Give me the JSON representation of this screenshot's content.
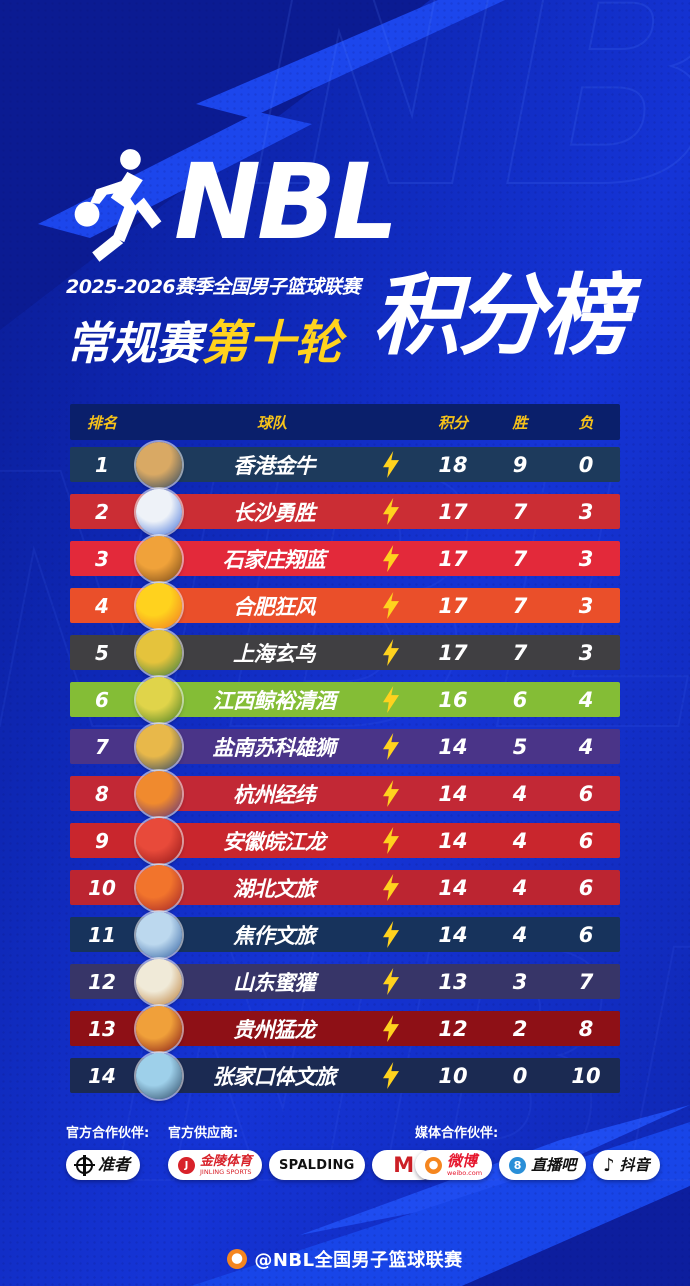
{
  "header": {
    "league": "NBL",
    "season_line": "2025-2026赛季全国男子篮球联赛",
    "stage": "常规赛",
    "round": "第十轮",
    "title": "积分榜"
  },
  "table": {
    "columns": [
      "排名",
      "球队",
      "积分",
      "胜",
      "负"
    ],
    "rows": [
      {
        "rank": "1",
        "team": "香港金牛",
        "points": "18",
        "wins": "9",
        "losses": "0",
        "row_color": "#1d3a5c",
        "logo_colors": [
          "#d9a964",
          "#26425f"
        ]
      },
      {
        "rank": "2",
        "team": "长沙勇胜",
        "points": "17",
        "wins": "7",
        "losses": "3",
        "row_color": "#cb2d34",
        "logo_colors": [
          "#eef2f8",
          "#3a6cd8"
        ]
      },
      {
        "rank": "3",
        "team": "石家庄翔蓝",
        "points": "17",
        "wins": "7",
        "losses": "3",
        "row_color": "#e3293a",
        "logo_colors": [
          "#f0a23a",
          "#6e4216"
        ]
      },
      {
        "rank": "4",
        "team": "合肥狂风",
        "points": "17",
        "wins": "7",
        "losses": "3",
        "row_color": "#ea4f2a",
        "logo_colors": [
          "#ffd21e",
          "#f07422"
        ]
      },
      {
        "rank": "5",
        "team": "上海玄鸟",
        "points": "17",
        "wins": "7",
        "losses": "3",
        "row_color": "#403f42",
        "logo_colors": [
          "#e5c33c",
          "#2f7a3f"
        ]
      },
      {
        "rank": "6",
        "team": "江西鲸裕清酒",
        "points": "16",
        "wins": "6",
        "losses": "4",
        "row_color": "#84bd36",
        "logo_colors": [
          "#e0d44a",
          "#3f7a22"
        ]
      },
      {
        "rank": "7",
        "team": "盐南苏科雄狮",
        "points": "14",
        "wins": "5",
        "losses": "4",
        "row_color": "#4a3488",
        "logo_colors": [
          "#e8b84a",
          "#223e66"
        ]
      },
      {
        "rank": "8",
        "team": "杭州经纬",
        "points": "14",
        "wins": "4",
        "losses": "6",
        "row_color": "#c22835",
        "logo_colors": [
          "#f08a2e",
          "#5a2d7e"
        ]
      },
      {
        "rank": "9",
        "team": "安徽皖江龙",
        "points": "14",
        "wins": "4",
        "losses": "6",
        "row_color": "#c9262d",
        "logo_colors": [
          "#e84a3a",
          "#8e1418"
        ]
      },
      {
        "rank": "10",
        "team": "湖北文旅",
        "points": "14",
        "wins": "4",
        "losses": "6",
        "row_color": "#bc2531",
        "logo_colors": [
          "#f2742c",
          "#9e1e28"
        ]
      },
      {
        "rank": "11",
        "team": "焦作文旅",
        "points": "14",
        "wins": "4",
        "losses": "6",
        "row_color": "#17335c",
        "logo_colors": [
          "#bcd8ee",
          "#2a5b9e"
        ]
      },
      {
        "rank": "12",
        "team": "山东蜜獾",
        "points": "13",
        "wins": "3",
        "losses": "7",
        "row_color": "#373568",
        "logo_colors": [
          "#f0ead8",
          "#b87830"
        ]
      },
      {
        "rank": "13",
        "team": "贵州猛龙",
        "points": "12",
        "wins": "2",
        "losses": "8",
        "row_color": "#8e1016",
        "logo_colors": [
          "#f0a03a",
          "#7e1014"
        ]
      },
      {
        "rank": "14",
        "team": "张家口体文旅",
        "points": "10",
        "wins": "0",
        "losses": "10",
        "row_color": "#1b2a52",
        "logo_colors": [
          "#9ed0ea",
          "#27425e"
        ]
      }
    ]
  },
  "sponsors": {
    "groups": [
      {
        "label": "官方合作伙伴:",
        "logos": [
          {
            "id": "rigorer",
            "name": "准者",
            "icon": "target"
          }
        ]
      },
      {
        "label": "官方供应商:",
        "logos": [
          {
            "id": "jinling-sports",
            "name": "金陵体育",
            "sub": "JINLING SPORTS",
            "icon": "jl-disc"
          },
          {
            "id": "spalding",
            "name": "SPALDING",
            "icon": "none"
          },
          {
            "id": "m-brand",
            "name": "M",
            "icon": "none"
          }
        ]
      },
      {
        "label": "媒体合作伙伴:",
        "logos": [
          {
            "id": "weibo",
            "name": "微博",
            "sub": "weibo.com",
            "icon": "weibo-eye"
          },
          {
            "id": "zhibo8",
            "name": "直播吧",
            "icon": "disc-8"
          },
          {
            "id": "douyin",
            "name": "抖音",
            "icon": "note"
          }
        ]
      }
    ]
  },
  "footer": {
    "handle": "@NBL全国男子篮球联赛"
  },
  "colors": {
    "background": "#1130c8",
    "bolt_overlay": "#1c46ec",
    "table_header_bg": "#0a1f6b",
    "accent_yellow": "#f6c21a",
    "lightning_yellow": "#ffd21e",
    "text_white": "#ffffff"
  },
  "chart_data": {
    "type": "table",
    "title": "2025-2026赛季全国男子篮球联赛 常规赛第十轮 积分榜",
    "columns": [
      "排名",
      "球队",
      "积分",
      "胜",
      "负"
    ],
    "rows": [
      [
        1,
        "香港金牛",
        18,
        9,
        0
      ],
      [
        2,
        "长沙勇胜",
        17,
        7,
        3
      ],
      [
        3,
        "石家庄翔蓝",
        17,
        7,
        3
      ],
      [
        4,
        "合肥狂风",
        17,
        7,
        3
      ],
      [
        5,
        "上海玄鸟",
        17,
        7,
        3
      ],
      [
        6,
        "江西鲸裕清酒",
        16,
        6,
        4
      ],
      [
        7,
        "盐南苏科雄狮",
        14,
        5,
        4
      ],
      [
        8,
        "杭州经纬",
        14,
        4,
        6
      ],
      [
        9,
        "安徽皖江龙",
        14,
        4,
        6
      ],
      [
        10,
        "湖北文旅",
        14,
        4,
        6
      ],
      [
        11,
        "焦作文旅",
        14,
        4,
        6
      ],
      [
        12,
        "山东蜜獾",
        13,
        3,
        7
      ],
      [
        13,
        "贵州猛龙",
        12,
        2,
        8
      ],
      [
        14,
        "张家口体文旅",
        10,
        0,
        10
      ]
    ]
  }
}
